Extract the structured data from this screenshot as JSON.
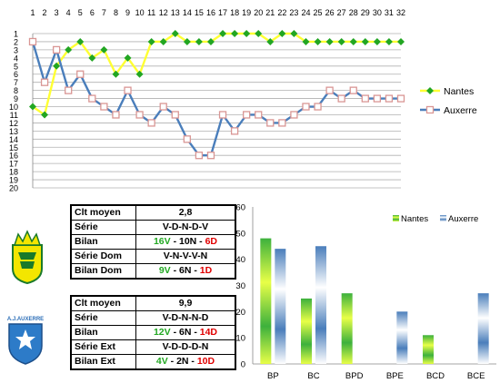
{
  "line_chart_data": {
    "type": "line",
    "x": [
      1,
      2,
      3,
      4,
      5,
      6,
      7,
      8,
      9,
      10,
      11,
      12,
      13,
      14,
      15,
      16,
      17,
      18,
      19,
      20,
      21,
      22,
      23,
      24,
      25,
      26,
      27,
      28,
      29,
      30,
      31,
      32
    ],
    "y_ticks": [
      1,
      2,
      3,
      4,
      5,
      6,
      7,
      8,
      9,
      10,
      11,
      12,
      13,
      14,
      15,
      16,
      17,
      18,
      19,
      20
    ],
    "ylim": [
      1,
      20
    ],
    "y_inverted": true,
    "grid": true,
    "legend_position": "right",
    "series": [
      {
        "name": "Nantes",
        "color": "#ffff00",
        "line_color": "#ffff33",
        "marker_color": "#22a622",
        "marker": "diamond",
        "values": [
          10,
          11,
          5,
          3,
          2,
          4,
          3,
          6,
          4,
          6,
          2,
          2,
          1,
          2,
          2,
          2,
          1,
          1,
          1,
          1,
          2,
          1,
          1,
          2,
          2,
          2,
          2,
          2,
          2,
          2,
          2,
          2
        ]
      },
      {
        "name": "Auxerre",
        "color": "#4a7ebb",
        "line_color": "#4a7ebb",
        "marker_color": "#d99694",
        "marker": "square",
        "values": [
          2,
          7,
          3,
          8,
          6,
          9,
          10,
          11,
          8,
          11,
          12,
          10,
          11,
          14,
          16,
          16,
          11,
          13,
          11,
          11,
          12,
          12,
          11,
          10,
          10,
          8,
          9,
          8,
          9,
          9,
          9,
          9
        ]
      }
    ]
  },
  "chart_data": {
    "type": "bar",
    "categories": [
      "BP",
      "BC",
      "BPD",
      "BPE",
      "BCD",
      "BCE"
    ],
    "ylim": [
      0,
      60
    ],
    "y_ticks": [
      0,
      10,
      20,
      30,
      40,
      50,
      60
    ],
    "legend_position": "top-right",
    "series": [
      {
        "name": "Nantes",
        "color": "#22a822",
        "values": [
          48,
          25,
          27,
          0,
          11,
          0
        ]
      },
      {
        "name": "Auxerre",
        "color": "#4a7ebb",
        "values": [
          44,
          45,
          0,
          20,
          0,
          27
        ]
      }
    ]
  },
  "nantes_table": {
    "logo_text": "FC NANTES",
    "rows": [
      {
        "label": "Clt moyen",
        "value": "2,8"
      },
      {
        "label": "Série",
        "value": "V-D-N-D-V"
      },
      {
        "label": "Bilan",
        "parts": [
          {
            "t": "16V",
            "c": "g"
          },
          {
            "t": " - 10N - ",
            "c": "k"
          },
          {
            "t": "6D",
            "c": "r"
          }
        ]
      },
      {
        "label": "Série Dom",
        "value": "V-N-V-V-N"
      },
      {
        "label": "Bilan Dom",
        "parts": [
          {
            "t": "9V",
            "c": "g"
          },
          {
            "t": " - 6N - ",
            "c": "k"
          },
          {
            "t": "1D",
            "c": "r"
          }
        ]
      }
    ]
  },
  "auxerre_table": {
    "logo_text": "A.J.AUXERRE",
    "rows": [
      {
        "label": "Clt moyen",
        "value": "9,9"
      },
      {
        "label": "Série",
        "value": "V-D-N-N-D"
      },
      {
        "label": "Bilan",
        "parts": [
          {
            "t": "12V",
            "c": "g"
          },
          {
            "t": " - 6N - ",
            "c": "k"
          },
          {
            "t": "14D",
            "c": "r"
          }
        ]
      },
      {
        "label": "Série Ext",
        "value": "V-D-D-D-N"
      },
      {
        "label": "Bilan Ext",
        "parts": [
          {
            "t": "4V",
            "c": "g"
          },
          {
            "t": " - 2N - ",
            "c": "k"
          },
          {
            "t": "10D",
            "c": "r"
          }
        ]
      }
    ]
  }
}
